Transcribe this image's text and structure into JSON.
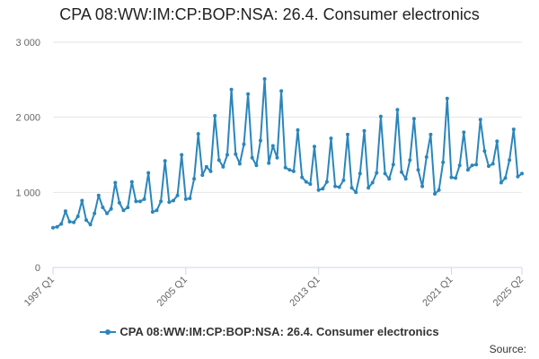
{
  "colors": {
    "series": "#2a86bb",
    "grid": "#e6e6e6",
    "axis": "#ccd6eb"
  },
  "footer": {
    "source": "Source:"
  },
  "chart_data": {
    "type": "line",
    "title": "CPA 08:WW:IM:CP:BOP:NSA: 26.4. Consumer electronics",
    "legend": "bottom-center",
    "grid": true,
    "ylim": [
      0,
      3000
    ],
    "yticks": [
      {
        "value": 0,
        "label": "0"
      },
      {
        "value": 1000,
        "label": "1 000"
      },
      {
        "value": 2000,
        "label": "2 000"
      },
      {
        "value": 3000,
        "label": "3 000"
      }
    ],
    "xticks": [
      {
        "index": 0,
        "label": "1997 Q1"
      },
      {
        "index": 32,
        "label": "2005 Q1"
      },
      {
        "index": 64,
        "label": "2013 Q1"
      },
      {
        "index": 96,
        "label": "2021 Q1"
      },
      {
        "index": 113,
        "label": "2025 Q2"
      }
    ],
    "series": [
      {
        "name": "CPA 08:WW:IM:CP:BOP:NSA: 26.4. Consumer electronics",
        "values": [
          530,
          540,
          580,
          750,
          610,
          600,
          680,
          890,
          630,
          570,
          720,
          960,
          800,
          720,
          780,
          1130,
          860,
          760,
          800,
          1140,
          880,
          880,
          910,
          1260,
          740,
          760,
          880,
          1420,
          870,
          890,
          960,
          1500,
          910,
          920,
          1180,
          1780,
          1230,
          1340,
          1280,
          2020,
          1430,
          1340,
          1500,
          2370,
          1510,
          1380,
          1640,
          2310,
          1460,
          1360,
          1690,
          2510,
          1390,
          1620,
          1460,
          2350,
          1330,
          1300,
          1280,
          1830,
          1200,
          1140,
          1110,
          1610,
          1030,
          1050,
          1140,
          1720,
          1080,
          1070,
          1160,
          1770,
          1060,
          1000,
          1250,
          1820,
          1060,
          1130,
          1260,
          2010,
          1250,
          1180,
          1370,
          2100,
          1270,
          1180,
          1430,
          1980,
          1300,
          1080,
          1470,
          1770,
          980,
          1030,
          1400,
          2250,
          1200,
          1190,
          1360,
          1800,
          1300,
          1360,
          1370,
          1970,
          1550,
          1350,
          1380,
          1680,
          1130,
          1190,
          1430,
          1840,
          1210,
          1250
        ]
      }
    ]
  }
}
